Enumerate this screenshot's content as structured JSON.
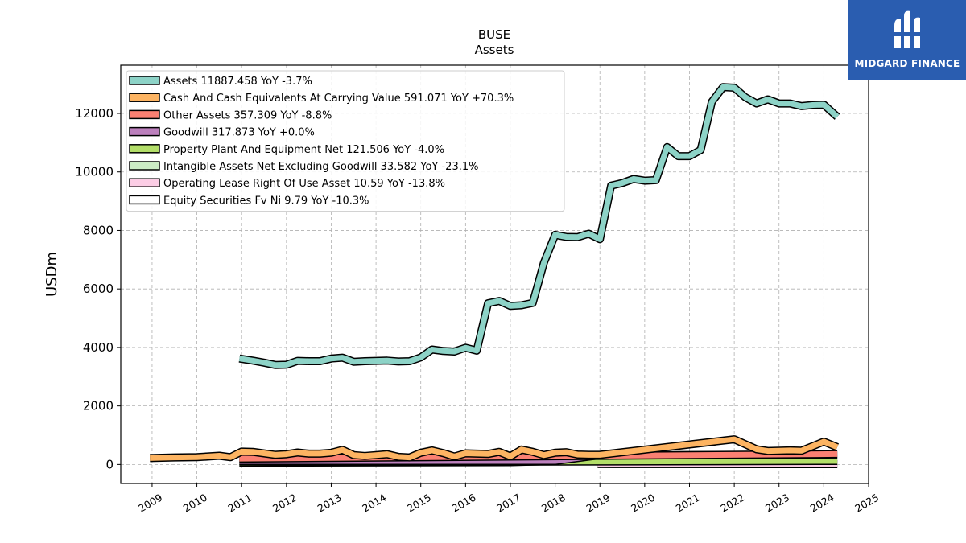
{
  "brand": {
    "name": "MIDGARD FINANCE",
    "bg": "#2a5db0"
  },
  "chart_data": {
    "type": "area",
    "title": "BUSE",
    "subtitle": "Assets",
    "ylabel": "USDm",
    "xlabel": "",
    "xlim": [
      2008.3,
      2025.0
    ],
    "ylim": [
      -650,
      13650
    ],
    "x_ticks": [
      "2009",
      "2010",
      "2011",
      "2012",
      "2013",
      "2014",
      "2015",
      "2016",
      "2017",
      "2018",
      "2019",
      "2020",
      "2021",
      "2022",
      "2023",
      "2024",
      "2025"
    ],
    "y_ticks": [
      "0",
      "2000",
      "4000",
      "6000",
      "8000",
      "10000",
      "12000"
    ],
    "y_tick_values": [
      0,
      2000,
      4000,
      6000,
      8000,
      10000,
      12000
    ],
    "grid": true,
    "legend_position": "top-left",
    "series": [
      {
        "name": "Assets",
        "legend": "Assets  11887.458 YoY -3.7%",
        "color": "#8dd3c7",
        "x": [
          2010.95,
          2011.25,
          2011.5,
          2011.75,
          2012.0,
          2012.25,
          2012.5,
          2012.75,
          2013.0,
          2013.25,
          2013.5,
          2013.75,
          2014.0,
          2014.25,
          2014.5,
          2014.75,
          2015.0,
          2015.25,
          2015.5,
          2015.75,
          2016.0,
          2016.25,
          2016.5,
          2016.75,
          2017.0,
          2017.25,
          2017.5,
          2017.75,
          2018.0,
          2018.25,
          2018.5,
          2018.75,
          2019.0,
          2019.25,
          2019.5,
          2019.75,
          2020.0,
          2020.25,
          2020.5,
          2020.75,
          2021.0,
          2021.25,
          2021.5,
          2021.75,
          2022.0,
          2022.25,
          2022.5,
          2022.75,
          2023.0,
          2023.25,
          2023.5,
          2023.75,
          2024.0,
          2024.3
        ],
        "y": [
          3620,
          3550,
          3480,
          3400,
          3410,
          3540,
          3530,
          3530,
          3620,
          3650,
          3510,
          3530,
          3540,
          3550,
          3520,
          3530,
          3660,
          3930,
          3880,
          3860,
          3990,
          3890,
          5510,
          5590,
          5420,
          5440,
          5520,
          6900,
          7850,
          7780,
          7770,
          7890,
          7700,
          9530,
          9620,
          9760,
          9700,
          9720,
          10850,
          10540,
          10540,
          10750,
          12400,
          12900,
          12880,
          12550,
          12340,
          12480,
          12340,
          12340,
          12250,
          12290,
          12300,
          11887
        ]
      },
      {
        "name": "Cash And Cash Equivalents At Carrying Value",
        "legend": "Cash And Cash Equivalents At Carrying Value  591.071 YoY +70.3%",
        "color": "#fdb462",
        "x": [
          2008.95,
          2009.5,
          2010.0,
          2010.5,
          2010.75,
          2011.0,
          2011.25,
          2011.75,
          2012.0,
          2012.25,
          2012.5,
          2012.75,
          2013.0,
          2013.25,
          2013.5,
          2013.75,
          2014.0,
          2014.25,
          2014.5,
          2014.75,
          2015.0,
          2015.25,
          2015.5,
          2015.75,
          2016.0,
          2016.25,
          2016.5,
          2016.75,
          2017.0,
          2017.25,
          2017.5,
          2017.75,
          2018.0,
          2018.25,
          2018.5,
          2018.75,
          2019.0,
          2022.0,
          2022.5,
          2022.75,
          2023.0,
          2023.25,
          2023.5,
          2024.0,
          2024.3
        ],
        "y": [
          220,
          240,
          250,
          300,
          250,
          440,
          430,
          330,
          350,
          410,
          370,
          370,
          400,
          500,
          320,
          290,
          320,
          350,
          260,
          240,
          400,
          480,
          390,
          270,
          380,
          370,
          360,
          430,
          280,
          510,
          430,
          320,
          400,
          420,
          340,
          330,
          330,
          860,
          520,
          460,
          470,
          480,
          470,
          780,
          591
        ]
      },
      {
        "name": "Other Assets",
        "legend": "Other Assets  357.309 YoY -8.8%",
        "color": "#fb8072",
        "x": [
          2010.95,
          2024.3
        ],
        "y": [
          200,
          357
        ]
      },
      {
        "name": "Goodwill",
        "legend": "Goodwill  317.873 YoY +0.0%",
        "color": "#bc80bd",
        "x": [
          2010.95,
          2018.0,
          2019.0,
          2024.3
        ],
        "y": [
          120,
          120,
          318,
          318
        ]
      },
      {
        "name": "Property Plant And Equipment Net",
        "legend": "Property Plant And Equipment Net  121.506 YoY -4.0%",
        "color": "#b3de69",
        "x": [
          2010.95,
          2024.3
        ],
        "y": [
          75,
          121
        ]
      },
      {
        "name": "Intangible Assets Net Excluding Goodwill",
        "legend": "Intangible Assets Net Excluding Goodwill  33.582 YoY -23.1%",
        "color": "#ccebc5",
        "x": [
          2010.95,
          2017.0,
          2018.0,
          2018.95
        ],
        "y": [
          60,
          80,
          120,
          120
        ]
      },
      {
        "name": "Operating Lease Right Of Use Asset",
        "legend": "Operating Lease Right Of Use Asset  10.59 YoY -13.8%",
        "color": "#fccde5",
        "x": [
          2018.95,
          2024.3
        ],
        "y": [
          20,
          11
        ]
      },
      {
        "name": "Equity Securities Fv Ni",
        "legend": "Equity Securities Fv Ni  9.79 YoY -10.3%",
        "color": "#ffffff",
        "x": [
          2018.95,
          2024.3
        ],
        "y": [
          15,
          10
        ]
      }
    ]
  }
}
